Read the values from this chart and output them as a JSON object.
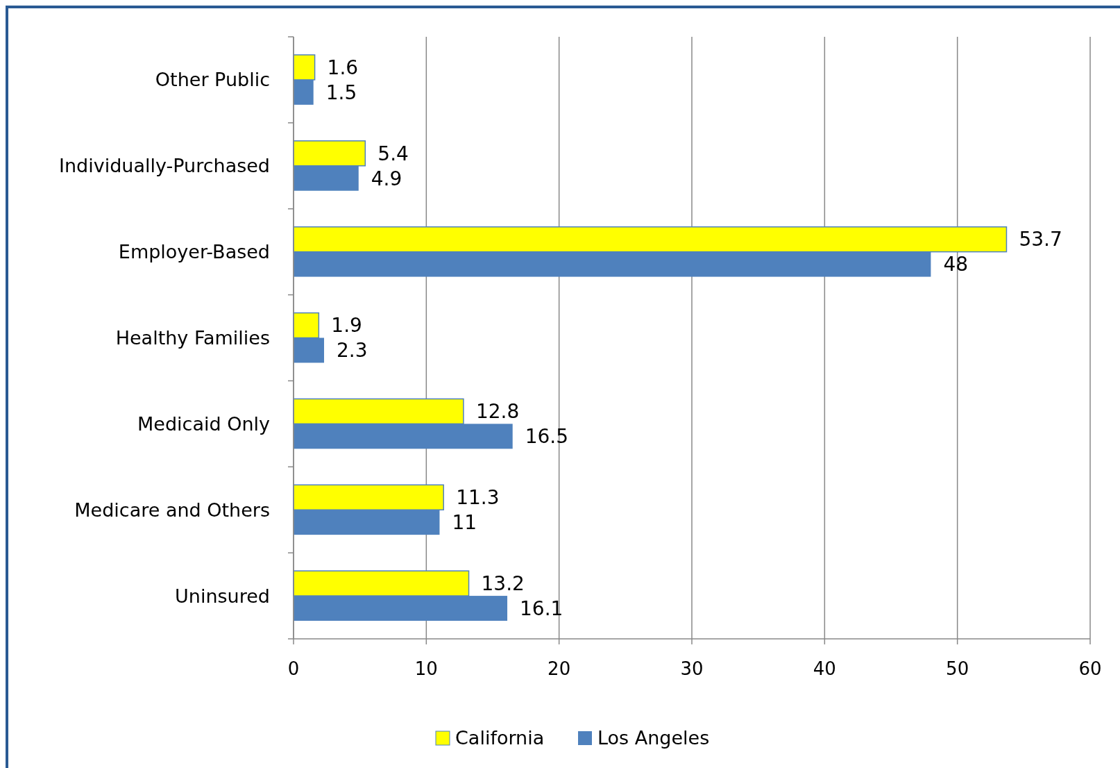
{
  "chart_data": {
    "type": "bar",
    "orientation": "horizontal",
    "categories": [
      "Other Public",
      "Individually-Purchased",
      "Employer-Based",
      "Healthy Families",
      "Medicaid Only",
      "Medicare and Others",
      "Uninsured"
    ],
    "series": [
      {
        "name": "California",
        "color": "#ffff00",
        "values": [
          1.6,
          5.4,
          53.7,
          1.9,
          12.8,
          11.3,
          13.2
        ]
      },
      {
        "name": "Los Angeles",
        "color": "#4f81bd",
        "values": [
          1.5,
          4.9,
          48,
          2.3,
          16.5,
          11,
          16.1
        ]
      }
    ],
    "xlim": [
      0,
      60
    ],
    "xticks": [
      0,
      10,
      20,
      30,
      40,
      50,
      60
    ],
    "grid": "x",
    "legend": "bottom",
    "data_labels": true
  }
}
